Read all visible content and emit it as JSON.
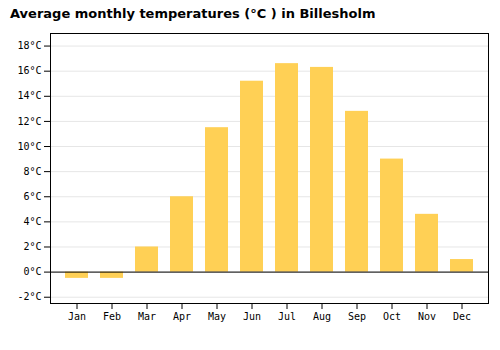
{
  "chart_data": {
    "type": "bar",
    "title": "Average monthly temperatures (°C ) in Billesholm",
    "categories": [
      "Jan",
      "Feb",
      "Mar",
      "Apr",
      "May",
      "Jun",
      "Jul",
      "Aug",
      "Sep",
      "Oct",
      "Nov",
      "Dec"
    ],
    "values": [
      -0.5,
      -0.5,
      2.0,
      6.0,
      11.5,
      15.2,
      16.6,
      16.3,
      12.8,
      9.0,
      4.6,
      1.0
    ],
    "color": "#FFD055",
    "ylim": [
      -2.5,
      19
    ],
    "yticks": [
      {
        "value": -2,
        "label": "-2°C"
      },
      {
        "value": 0,
        "label": "0°C"
      },
      {
        "value": 2,
        "label": "2°C"
      },
      {
        "value": 4,
        "label": "4°C"
      },
      {
        "value": 6,
        "label": "6°C"
      },
      {
        "value": 8,
        "label": "8°C"
      },
      {
        "value": 10,
        "label": "10°C"
      },
      {
        "value": 12,
        "label": "12°C"
      },
      {
        "value": 14,
        "label": "14°C"
      },
      {
        "value": 16,
        "label": "16°C"
      },
      {
        "value": 18,
        "label": "18°C"
      }
    ],
    "grid": true
  }
}
